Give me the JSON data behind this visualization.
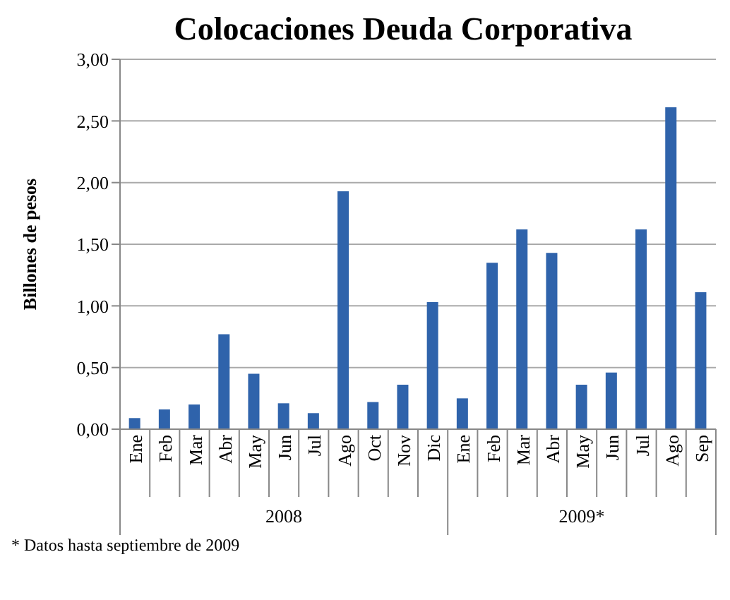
{
  "chart_data": {
    "type": "bar",
    "title": "Colocaciones Deuda Corporativa",
    "ylabel": "Billones de pesos",
    "categories": [
      "Ene",
      "Feb",
      "Mar",
      "Abr",
      "May",
      "Jun",
      "Jul",
      "Ago",
      "Oct",
      "Nov",
      "Dic",
      "Ene",
      "Feb",
      "Mar",
      "Abr",
      "May",
      "Jun",
      "Jul",
      "Ago",
      "Sep"
    ],
    "values": [
      0.09,
      0.16,
      0.2,
      0.77,
      0.45,
      0.21,
      0.13,
      1.93,
      0.22,
      0.36,
      1.03,
      0.25,
      1.35,
      1.62,
      1.43,
      0.36,
      0.46,
      1.62,
      2.61,
      1.11
    ],
    "color": "#2f63ab",
    "ylim": [
      0,
      3
    ],
    "yticks": [
      {
        "value": 0,
        "label": "0,00"
      },
      {
        "value": 0.5,
        "label": "0,50"
      },
      {
        "value": 1,
        "label": "1,00"
      },
      {
        "value": 1.5,
        "label": "1,50"
      },
      {
        "value": 2,
        "label": "2,00"
      },
      {
        "value": 2.5,
        "label": "2,50"
      },
      {
        "value": 3,
        "label": "3,00"
      }
    ],
    "grid": "y",
    "annotations": [
      "2008",
      "2009*",
      "* Datos hasta septiembre de 2009"
    ]
  }
}
